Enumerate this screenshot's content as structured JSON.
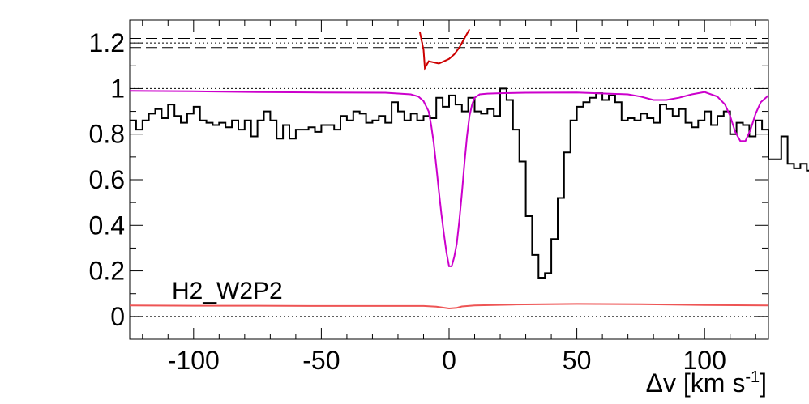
{
  "chart_data": {
    "type": "line",
    "title": "",
    "xlabel": "Δv [km s",
    "xlabel_sup": "-1",
    "xlabel_close": "]",
    "ylabel": "",
    "xlim": [
      -125,
      125
    ],
    "ylim": [
      -0.1,
      1.3
    ],
    "grid": false,
    "x_ticks": [
      -100,
      -50,
      0,
      50,
      100
    ],
    "x_tick_labels": [
      "-100",
      "-50",
      "0",
      "50",
      "100"
    ],
    "y_ticks": [
      0,
      0.2,
      0.4,
      0.6,
      0.8,
      1,
      1.2
    ],
    "y_tick_labels": [
      "0",
      "0.2",
      "0.4",
      "0.6",
      "0.8",
      "1",
      "1.2"
    ],
    "annotation": "H2_W2P2",
    "reference_lines": {
      "dotted": [
        0,
        1,
        1.2
      ],
      "dashed": [
        1.18,
        1.22
      ]
    },
    "series": [
      {
        "kind": "step",
        "color": "#000000",
        "bin_width": 2.5,
        "x_start": -125,
        "values": [
          0.86,
          0.82,
          0.86,
          0.89,
          0.91,
          0.87,
          0.93,
          0.88,
          0.85,
          0.89,
          0.92,
          0.86,
          0.85,
          0.84,
          0.85,
          0.83,
          0.86,
          0.82,
          0.86,
          0.79,
          0.86,
          0.9,
          0.86,
          0.78,
          0.84,
          0.78,
          0.82,
          0.82,
          0.83,
          0.81,
          0.84,
          0.84,
          0.82,
          0.88,
          0.86,
          0.9,
          0.89,
          0.85,
          0.86,
          0.88,
          0.85,
          0.94,
          0.9,
          0.86,
          0.89,
          0.86,
          0.88,
          0.87,
          0.96,
          0.92,
          0.97,
          0.93,
          0.9,
          0.96,
          0.9,
          0.89,
          0.91,
          0.88,
          1.0,
          0.95,
          0.82,
          0.68,
          0.44,
          0.27,
          0.17,
          0.19,
          0.34,
          0.52,
          0.72,
          0.86,
          0.92,
          0.94,
          0.96,
          0.98,
          0.95,
          0.97,
          0.94,
          0.86,
          0.87,
          0.86,
          0.89,
          0.87,
          0.85,
          0.93,
          0.91,
          0.88,
          0.91,
          0.85,
          0.83,
          0.86,
          0.9,
          0.84,
          0.88,
          0.9,
          0.8,
          0.85,
          0.84,
          0.79,
          0.86,
          0.82,
          0.69,
          0.69,
          0.79,
          0.67,
          0.65,
          0.67,
          0.64,
          0.68,
          0.59,
          0.75
        ]
      },
      {
        "kind": "line",
        "color": "#cc00cc",
        "name": "",
        "x": [
          -125,
          -100,
          -75,
          -50,
          -25,
          -15,
          -12,
          -10,
          -8,
          -7,
          -6,
          -5,
          -4,
          -3,
          -2,
          -1,
          0,
          1,
          2,
          3,
          4,
          5,
          6,
          7,
          8,
          9,
          10,
          12,
          15,
          20,
          30,
          50,
          70,
          75,
          80,
          85,
          90,
          95,
          100,
          105,
          108,
          110,
          112,
          114,
          116,
          118,
          120,
          122,
          125
        ],
        "y": [
          0.99,
          0.988,
          0.985,
          0.983,
          0.982,
          0.975,
          0.965,
          0.945,
          0.9,
          0.84,
          0.76,
          0.66,
          0.55,
          0.45,
          0.36,
          0.28,
          0.22,
          0.22,
          0.26,
          0.32,
          0.42,
          0.54,
          0.67,
          0.79,
          0.88,
          0.93,
          0.96,
          0.975,
          0.978,
          0.98,
          0.982,
          0.983,
          0.975,
          0.965,
          0.95,
          0.95,
          0.96,
          0.975,
          0.985,
          0.965,
          0.93,
          0.88,
          0.81,
          0.77,
          0.77,
          0.82,
          0.89,
          0.94,
          0.97
        ]
      },
      {
        "kind": "line",
        "color": "#ee5555",
        "name": "",
        "x": [
          -125,
          -100,
          -75,
          -50,
          -25,
          -10,
          -5,
          0,
          3,
          5,
          10,
          25,
          50,
          75,
          100,
          125
        ],
        "y": [
          0.048,
          0.047,
          0.047,
          0.046,
          0.046,
          0.046,
          0.043,
          0.035,
          0.038,
          0.044,
          0.048,
          0.052,
          0.055,
          0.054,
          0.05,
          0.048
        ]
      },
      {
        "kind": "line",
        "color": "#cc0000",
        "name": "",
        "x": [
          -11.5,
          -10,
          -9.5,
          -8,
          -4,
          -2,
          0,
          2,
          4,
          6,
          8
        ],
        "y": [
          1.25,
          1.17,
          1.09,
          1.12,
          1.11,
          1.12,
          1.13,
          1.15,
          1.18,
          1.22,
          1.26
        ]
      }
    ]
  }
}
